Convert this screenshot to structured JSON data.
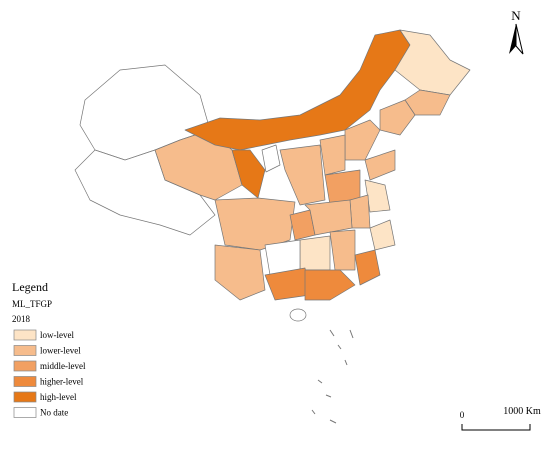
{
  "north": "N",
  "legend": {
    "title": "Legend",
    "field": "ML_TFGP",
    "year": "2018",
    "items": [
      {
        "label": "low-level",
        "color": "#fde4c6"
      },
      {
        "label": "lower-level",
        "color": "#f6bc8c"
      },
      {
        "label": "middle-level",
        "color": "#f2a062"
      },
      {
        "label": "higher-level",
        "color": "#ee8a3c"
      },
      {
        "label": "high-level",
        "color": "#e67817"
      },
      {
        "label": "No date",
        "color": "#ffffff"
      }
    ]
  },
  "scale": {
    "zero": "0",
    "label": "1000 Km"
  }
}
